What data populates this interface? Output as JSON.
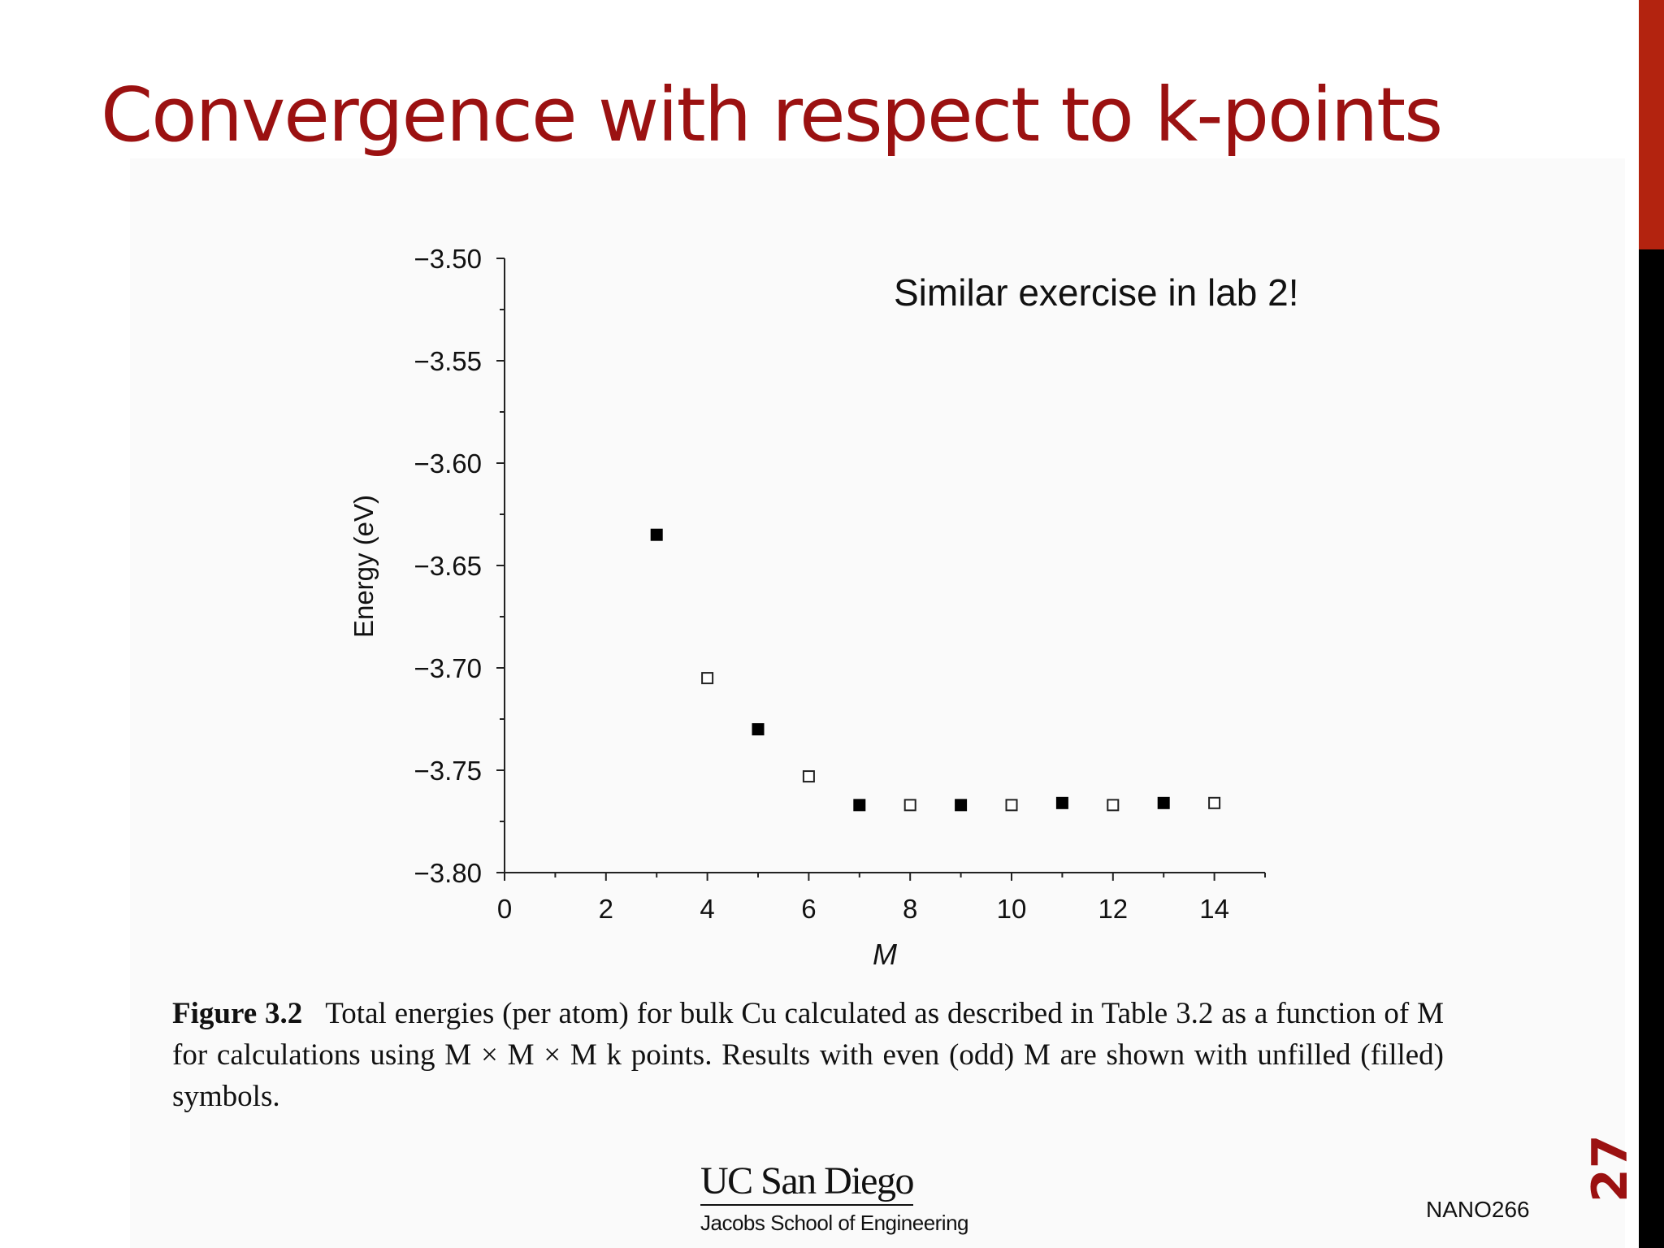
{
  "slide": {
    "title": "Convergence with respect to k-points",
    "slide_number": "27",
    "course_code": "NANO266",
    "annotation": "Similar exercise in lab 2!",
    "logo": {
      "main": "UC San Diego",
      "sub": "Jacobs School of Engineering"
    },
    "caption": {
      "label": "Figure 3.2",
      "text": "Total energies (per atom) for bulk Cu calculated as described in Table 3.2 as a function of M for calculations using M × M × M k points. Results with even (odd) M are shown with unfilled (filled) symbols."
    },
    "colors": {
      "title": "#9b1111",
      "sidebar_top": "#b3230f",
      "sidebar_bottom": "#000000"
    }
  },
  "chart_data": {
    "type": "scatter",
    "title": "",
    "xlabel": "M",
    "ylabel": "Energy (eV)",
    "xlim": [
      0,
      15
    ],
    "ylim": [
      -3.8,
      -3.5
    ],
    "x_ticks": [
      0,
      2,
      4,
      6,
      8,
      10,
      12,
      14
    ],
    "x_tick_labels": [
      "0",
      "2",
      "4",
      "6",
      "8",
      "10",
      "12",
      "14"
    ],
    "y_ticks": [
      -3.5,
      -3.55,
      -3.6,
      -3.65,
      -3.7,
      -3.75,
      -3.8
    ],
    "y_tick_labels": [
      "−3.50",
      "−3.55",
      "−3.60",
      "−3.65",
      "−3.70",
      "−3.75",
      "−3.80"
    ],
    "grid": false,
    "series": [
      {
        "name": "odd M (filled)",
        "marker": "filled-square",
        "x": [
          3,
          5,
          7,
          9,
          11,
          13
        ],
        "y": [
          -3.635,
          -3.73,
          -3.767,
          -3.767,
          -3.766,
          -3.766
        ]
      },
      {
        "name": "even M (unfilled)",
        "marker": "open-square",
        "x": [
          4,
          6,
          8,
          10,
          12,
          14
        ],
        "y": [
          -3.705,
          -3.753,
          -3.767,
          -3.767,
          -3.767,
          -3.766
        ]
      }
    ]
  }
}
